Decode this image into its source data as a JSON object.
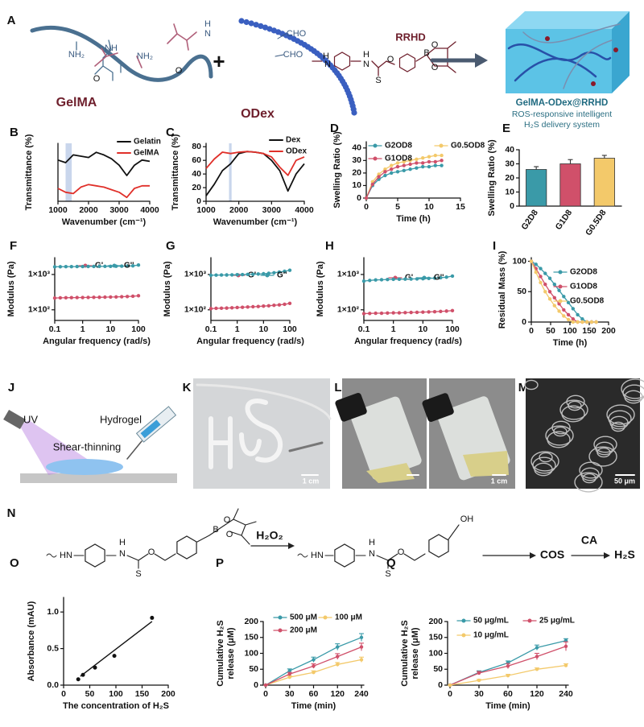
{
  "figure": {
    "panel_labels": [
      "A",
      "J",
      "K",
      "L",
      "M",
      "N"
    ],
    "diagram_a": [
      "GelMA",
      "NH₂",
      "NH₂",
      "NH",
      "O",
      "O",
      "H",
      "N",
      "+",
      "ODex",
      "CHO",
      "CHO",
      "RRHD",
      "H",
      "N",
      "H",
      "N",
      "O",
      "S",
      "B",
      "O",
      "O",
      "GelMA-ODex@RRHD",
      "ROS-responsive intelligent",
      "H₂S delivery system"
    ],
    "panel_j": [
      "UV",
      "Hydrogel",
      "Shear-thinning"
    ],
    "scale_bars": [
      "1 cm",
      "1 cm",
      "50 μm"
    ],
    "reaction": [
      "HN",
      "H",
      "N",
      "S",
      "O",
      "B",
      "O",
      "O",
      "H₂O₂",
      "HN",
      "H",
      "N",
      "S",
      "O",
      "OH",
      "COS",
      "CA",
      "H₂S"
    ]
  },
  "chart_data": [
    {
      "type": "line",
      "panel": "B",
      "xlabel": "Wavenumber (cm⁻¹)",
      "ylabel": "Transmittance (%)",
      "x": [
        1000,
        1250,
        1500,
        1750,
        2000,
        2250,
        2500,
        2750,
        3000,
        3250,
        3500,
        3750,
        4000
      ],
      "xlim": [
        1000,
        4000
      ],
      "xticks": [
        1000,
        2000,
        3000,
        4000
      ],
      "ylim": [
        0,
        45
      ],
      "highlight": [
        1250,
        1450
      ],
      "series": [
        {
          "name": "Gelatin",
          "color": "#111111",
          "values": [
            32,
            30,
            36,
            35,
            34,
            38,
            36,
            33,
            28,
            20,
            28,
            32,
            31
          ]
        },
        {
          "name": "GelMA",
          "color": "#e0302a",
          "values": [
            10,
            7,
            6,
            11,
            13,
            12,
            11,
            9,
            7,
            3,
            10,
            12,
            12
          ]
        }
      ]
    },
    {
      "type": "line",
      "panel": "C",
      "xlabel": "Wavenumber (cm⁻¹)",
      "ylabel": "Transmittance (%)",
      "x": [
        1000,
        1250,
        1500,
        1750,
        2000,
        2250,
        2500,
        2750,
        3000,
        3250,
        3500,
        3750,
        4000
      ],
      "xlim": [
        1000,
        4000
      ],
      "xticks": [
        1000,
        2000,
        3000,
        4000
      ],
      "ylim": [
        0,
        85
      ],
      "yticks": [
        0,
        20,
        40,
        60,
        80
      ],
      "highlight": [
        1700,
        1780
      ],
      "series": [
        {
          "name": "Dex",
          "color": "#111111",
          "values": [
            8,
            25,
            45,
            55,
            70,
            73,
            72,
            70,
            60,
            45,
            15,
            40,
            55
          ]
        },
        {
          "name": "ODex",
          "color": "#e0302a",
          "values": [
            48,
            62,
            72,
            70,
            72,
            73,
            72,
            70,
            65,
            50,
            38,
            60,
            65
          ]
        }
      ]
    },
    {
      "type": "line",
      "panel": "D",
      "markers": true,
      "xlabel": "Time (h)",
      "ylabel": "Swelling Ratio (%)",
      "x": [
        0,
        1,
        2,
        3,
        4,
        5,
        6,
        7,
        8,
        9,
        10,
        11,
        12
      ],
      "xlim": [
        0,
        15
      ],
      "xticks": [
        0,
        5,
        10,
        15
      ],
      "ylim": [
        0,
        45
      ],
      "yticks": [
        0,
        10,
        20,
        30,
        40
      ],
      "series": [
        {
          "name": "G2OD8",
          "color": "#3a9aa8",
          "values": [
            0,
            10,
            15,
            18,
            20,
            21,
            22,
            23,
            24,
            25,
            25,
            26,
            26
          ]
        },
        {
          "name": "G0.5OD8",
          "color": "#f3c96a",
          "values": [
            0,
            13,
            19,
            23,
            26,
            28,
            29,
            30,
            31,
            32,
            33,
            34,
            34
          ]
        },
        {
          "name": "G1OD8",
          "color": "#d0506a",
          "values": [
            0,
            11,
            17,
            21,
            23,
            25,
            26,
            27,
            28,
            28,
            29,
            29,
            30
          ]
        }
      ]
    },
    {
      "type": "bar",
      "panel": "E",
      "ylabel": "Swelling Ratio (%)",
      "categories": [
        "G2D8",
        "G1D8",
        "G0.5D8"
      ],
      "values": [
        26,
        30,
        34
      ],
      "errors": [
        2,
        3,
        2
      ],
      "colors": [
        "#3a9aa8",
        "#d0506a",
        "#f3c96a"
      ],
      "ylim": [
        0,
        40
      ],
      "yticks": [
        0,
        10,
        20,
        30,
        40
      ]
    },
    {
      "type": "line",
      "panel": "F",
      "markers": true,
      "xscale": "log",
      "yscale": "log",
      "xlabel": "Angular frequency (rad/s)",
      "ylabel": "Modulus (Pa)",
      "x": [
        0.1,
        0.158,
        0.251,
        0.398,
        0.631,
        1,
        1.58,
        2.51,
        3.98,
        6.31,
        10,
        15.8,
        25.1,
        39.8,
        63.1,
        100
      ],
      "xlim": [
        0.1,
        100
      ],
      "xticks": [
        0.1,
        1,
        10,
        100
      ],
      "ylim": [
        50,
        3000
      ],
      "yticks": [
        {
          "value": 100,
          "label": "1×10²"
        },
        {
          "value": 1000,
          "label": "1×10³"
        }
      ],
      "series": [
        {
          "name": "G'",
          "color": "#d0506a",
          "values": [
            215,
            218,
            220,
            221,
            222,
            223,
            224,
            225,
            226,
            228,
            230,
            232,
            235,
            238,
            242,
            250
          ]
        },
        {
          "name": "G''",
          "color": "#3a9aa8",
          "values": [
            1650,
            1660,
            1665,
            1670,
            1675,
            1680,
            1685,
            1690,
            1695,
            1700,
            1705,
            1710,
            1720,
            1730,
            1760,
            1850
          ]
        }
      ]
    },
    {
      "type": "line",
      "panel": "G",
      "markers": true,
      "xscale": "log",
      "yscale": "log",
      "xlabel": "Angular frequency (rad/s)",
      "ylabel": "Modulus (Pa)",
      "x": [
        0.1,
        0.158,
        0.251,
        0.398,
        0.631,
        1,
        1.58,
        2.51,
        3.98,
        6.31,
        10,
        15.8,
        25.1,
        39.8,
        63.1,
        100
      ],
      "xlim": [
        0.1,
        100
      ],
      "xticks": [
        0.1,
        1,
        10,
        100
      ],
      "ylim": [
        50,
        3000
      ],
      "yticks": [
        {
          "value": 100,
          "label": "1×10²"
        },
        {
          "value": 1000,
          "label": "1×10³"
        }
      ],
      "series": [
        {
          "name": "G'",
          "color": "#d0506a",
          "values": [
            108,
            110,
            111,
            112,
            114,
            116,
            118,
            120,
            122,
            124,
            127,
            130,
            134,
            138,
            143,
            152
          ]
        },
        {
          "name": "G''",
          "color": "#3a9aa8",
          "values": [
            950,
            960,
            965,
            970,
            975,
            985,
            995,
            1005,
            1015,
            1030,
            1050,
            1080,
            1120,
            1170,
            1230,
            1320
          ]
        }
      ]
    },
    {
      "type": "line",
      "panel": "H",
      "markers": true,
      "xscale": "log",
      "yscale": "log",
      "xlabel": "Angular frequency (rad/s)",
      "ylabel": "Modulus (Pa)",
      "x": [
        0.1,
        0.158,
        0.251,
        0.398,
        0.631,
        1,
        1.58,
        2.51,
        3.98,
        6.31,
        10,
        15.8,
        25.1,
        39.8,
        63.1,
        100
      ],
      "xlim": [
        0.1,
        100
      ],
      "xticks": [
        0.1,
        1,
        10,
        100
      ],
      "ylim": [
        50,
        3000
      ],
      "yticks": [
        {
          "value": 100,
          "label": "1×10²"
        },
        {
          "value": 1000,
          "label": "1×10³"
        }
      ],
      "series": [
        {
          "name": "G'",
          "color": "#d0506a",
          "values": [
            78,
            79,
            80,
            80,
            81,
            82,
            82,
            83,
            84,
            85,
            86,
            87,
            88,
            90,
            92,
            95
          ]
        },
        {
          "name": "G''",
          "color": "#3a9aa8",
          "values": [
            650,
            680,
            700,
            710,
            720,
            730,
            735,
            740,
            745,
            750,
            760,
            775,
            790,
            810,
            840,
            900
          ]
        }
      ]
    },
    {
      "type": "line",
      "panel": "I",
      "markers": true,
      "xlabel": "Time (h)",
      "ylabel": "Residual Mass (%)",
      "x": [
        0,
        12,
        24,
        36,
        48,
        60,
        72,
        84,
        96,
        108,
        120,
        132,
        144,
        156,
        168
      ],
      "xlim": [
        0,
        200
      ],
      "xticks": [
        0,
        50,
        100,
        150,
        200
      ],
      "ylim": [
        0,
        106
      ],
      "yticks": [
        0,
        50,
        100
      ],
      "series": [
        {
          "name": "G2OD8",
          "color": "#3a9aa8",
          "values": [
            100,
            95,
            88,
            80,
            72,
            62,
            52,
            42,
            32,
            22,
            12,
            5,
            0,
            0,
            0
          ]
        },
        {
          "name": "G1OD8",
          "color": "#d0506a",
          "values": [
            100,
            88,
            75,
            62,
            50,
            40,
            30,
            20,
            12,
            5,
            0,
            0,
            0,
            0,
            0
          ]
        },
        {
          "name": "G0.5OD8",
          "color": "#f3c96a",
          "values": [
            100,
            82,
            65,
            50,
            38,
            27,
            18,
            10,
            4,
            0,
            0,
            0,
            0,
            0,
            0
          ]
        }
      ]
    },
    {
      "type": "scatter",
      "panel": "O",
      "xlabel": "The concentration of H₂S",
      "ylabel": "Absorbance (mAU)",
      "x": [
        28,
        37,
        60,
        97,
        169
      ],
      "values": [
        0.08,
        0.14,
        0.24,
        0.4,
        0.92
      ],
      "color": "#111111",
      "fit": {
        "x": [
          32,
          169
        ],
        "y": [
          0.12,
          0.87
        ]
      },
      "xlim": [
        0,
        200
      ],
      "xticks": [
        0,
        50,
        100,
        150,
        200
      ],
      "ylim": [
        0,
        1.2
      ],
      "yticks": [
        {
          "value": 0,
          "label": "0.0"
        },
        0.5,
        {
          "value": 1,
          "label": "1.0"
        }
      ]
    },
    {
      "type": "line",
      "panel": "P",
      "markers": true,
      "xlabel": "Time (min)",
      "ylabel": [
        "Cumulative H₂S",
        "release (μM)"
      ],
      "categories": [
        "0",
        "30",
        "60",
        "120",
        "240"
      ],
      "ylim": [
        0,
        200
      ],
      "yticks": [
        0,
        50,
        100,
        150,
        200
      ],
      "series": [
        {
          "name": "500 μM",
          "color": "#3a9aa8",
          "values": [
            0,
            45,
            80,
            120,
            150
          ],
          "errors": [
            0,
            6,
            8,
            10,
            12
          ]
        },
        {
          "name": "100 μM",
          "color": "#f3c96a",
          "values": [
            0,
            25,
            40,
            65,
            80
          ],
          "errors": [
            0,
            4,
            5,
            6,
            8
          ]
        },
        {
          "name": "200 μM",
          "color": "#d0506a",
          "values": [
            0,
            35,
            60,
            90,
            120
          ],
          "errors": [
            0,
            5,
            7,
            9,
            12
          ]
        }
      ]
    },
    {
      "type": "line",
      "panel": "Q",
      "markers": true,
      "xlabel": "Time (min)",
      "ylabel": [
        "Cumulative H₂S",
        "release (μM)"
      ],
      "categories": [
        "0",
        "30",
        "60",
        "120",
        "240"
      ],
      "ylim": [
        0,
        200
      ],
      "yticks": [
        0,
        50,
        100,
        150,
        200
      ],
      "series": [
        {
          "name": "50 μg/mL",
          "color": "#3a9aa8",
          "values": [
            0,
            40,
            70,
            118,
            140
          ],
          "errors": [
            0,
            5,
            6,
            8,
            6
          ]
        },
        {
          "name": "25 μg/mL",
          "color": "#d0506a",
          "values": [
            0,
            38,
            60,
            90,
            122
          ],
          "errors": [
            0,
            5,
            8,
            10,
            14
          ]
        },
        {
          "name": "10 μg/mL",
          "color": "#f3c96a",
          "values": [
            0,
            15,
            30,
            50,
            62
          ],
          "errors": [
            0,
            3,
            4,
            4,
            5
          ]
        }
      ]
    }
  ]
}
